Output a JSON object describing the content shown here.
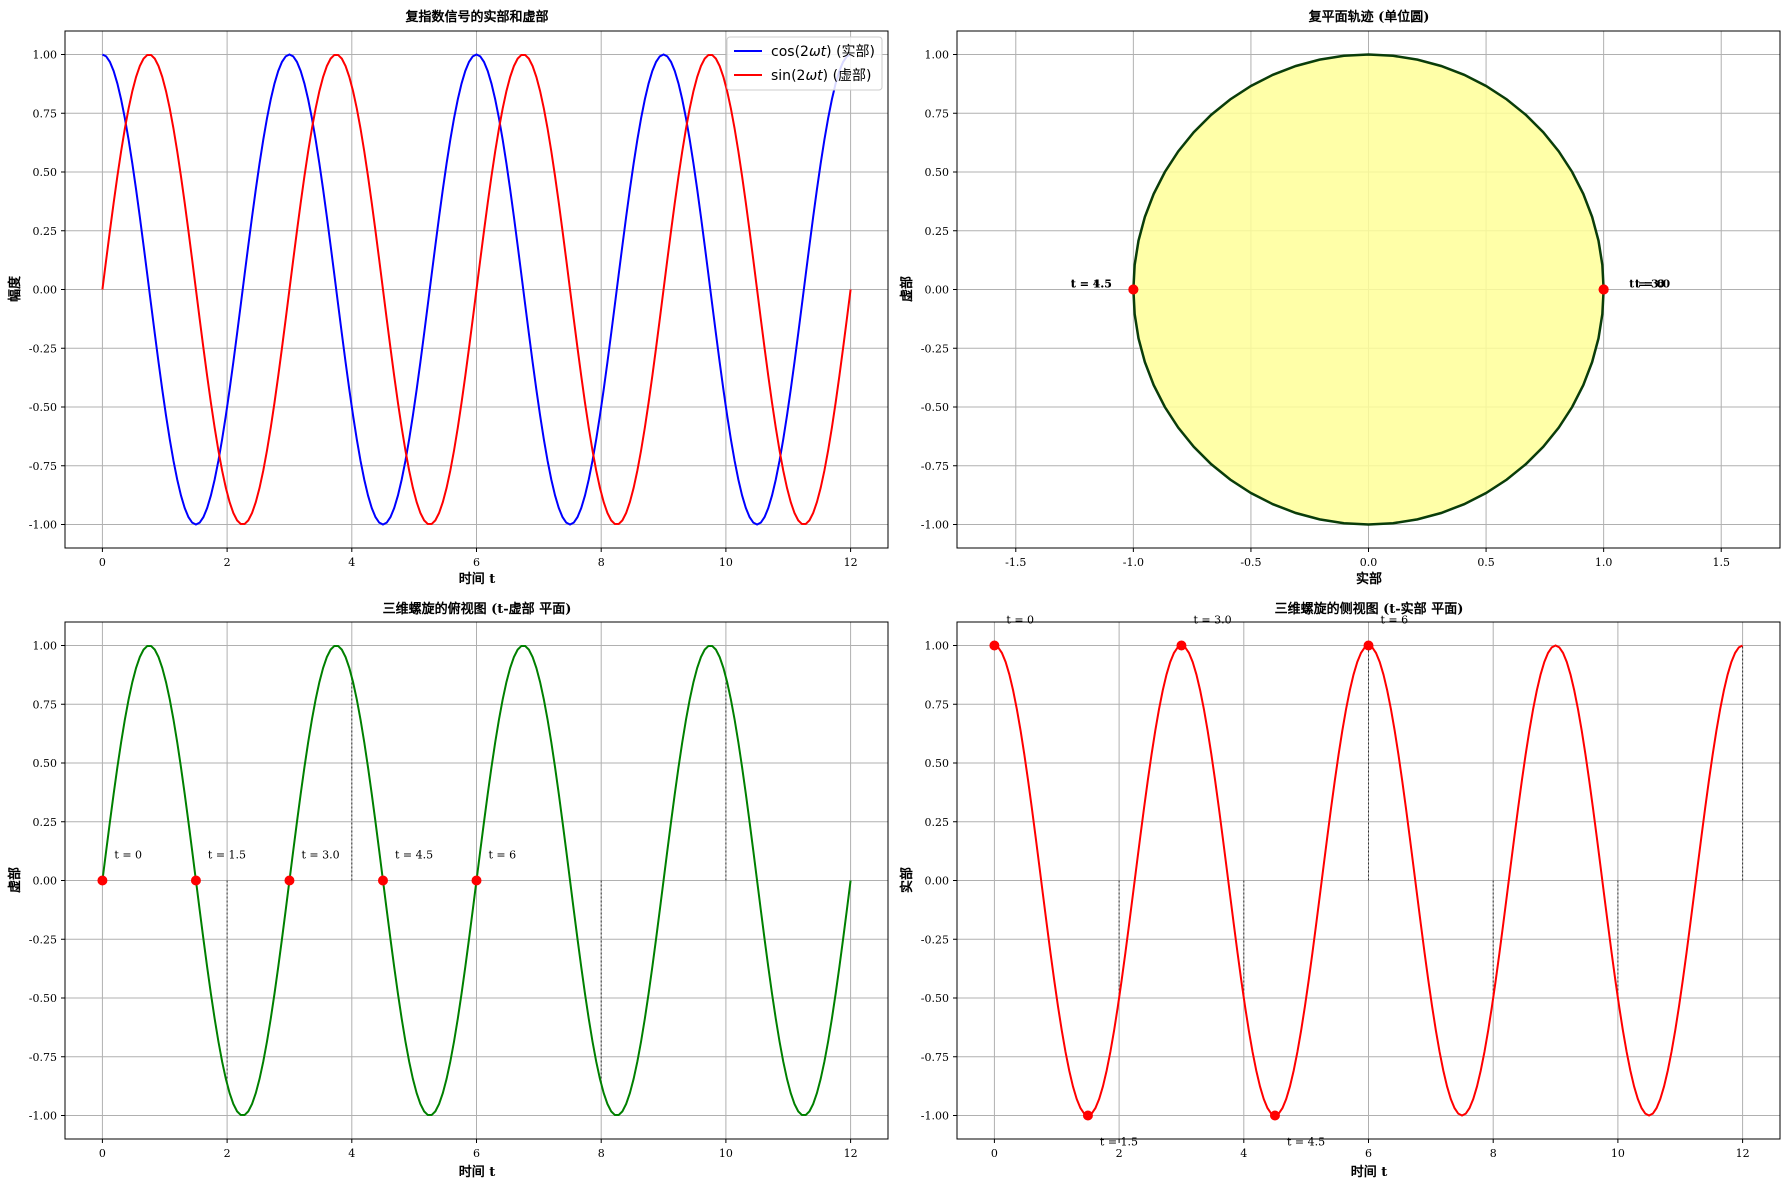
{
  "chart_data": [
    {
      "type": "line",
      "title": "复指数信号的实部和虚部",
      "xlabel": "时间 t",
      "ylabel": "幅度",
      "xlim": [
        -0.6,
        12.6
      ],
      "ylim": [
        -1.1,
        1.1
      ],
      "xticks": [
        "0",
        "2",
        "4",
        "6",
        "8",
        "10",
        "12"
      ],
      "yticks": [
        "1.00",
        "0.75",
        "0.50",
        "0.25",
        "0.00",
        "-0.25",
        "-0.50",
        "-0.75",
        "-1.00"
      ],
      "grid": true,
      "legend": "upper right",
      "series": [
        {
          "name": "cos(2ωt) (实部)",
          "legend_func": "cos",
          "legend_suffix": " (实部)",
          "func": "cos",
          "period": 3,
          "color": "#0000ff"
        },
        {
          "name": "sin(2ωt) (虚部)",
          "legend_func": "sin",
          "legend_suffix": " (虚部)",
          "func": "sin",
          "period": 3,
          "color": "#ff0000"
        }
      ]
    },
    {
      "type": "line",
      "title": "复平面轨迹 (单位圆)",
      "xlabel": "实部",
      "ylabel": "虚部",
      "xlim": [
        -1.75,
        1.75
      ],
      "ylim": [
        -1.1,
        1.1
      ],
      "xticks": [
        "-1.5",
        "-1.0",
        "-0.5",
        "0.0",
        "0.5",
        "1.0",
        "1.5"
      ],
      "yticks": [
        "1.00",
        "0.75",
        "0.50",
        "0.25",
        "0.00",
        "-0.25",
        "-0.50",
        "-0.75",
        "-1.00"
      ],
      "grid": true,
      "series": [
        {
          "shape": "unit circle",
          "line_color": "#0a3d0a",
          "fill_color": "#ffff99"
        }
      ],
      "markers": [
        {
          "label": "t = 0",
          "x": 1.0,
          "y": 0.0
        },
        {
          "label": "t = 3.0",
          "x": 1.0,
          "y": 0.0
        },
        {
          "label": "t = 6",
          "x": 1.0,
          "y": 0.0
        },
        {
          "label": "t = 1.5",
          "x": -1.0,
          "y": 0.0
        },
        {
          "label": "t = 4.5",
          "x": -1.0,
          "y": 0.0
        }
      ],
      "marker_color": "#ff0000"
    },
    {
      "type": "line",
      "title": "三维螺旋的俯视图 (t-虚部 平面)",
      "xlabel": "时间 t",
      "ylabel": "虚部",
      "xlim": [
        -0.6,
        12.6
      ],
      "ylim": [
        -1.1,
        1.1
      ],
      "xticks": [
        "0",
        "2",
        "4",
        "6",
        "8",
        "10",
        "12"
      ],
      "yticks": [
        "1.00",
        "0.75",
        "0.50",
        "0.25",
        "0.00",
        "-0.25",
        "-0.50",
        "-0.75",
        "-1.00"
      ],
      "grid": true,
      "series": [
        {
          "func": "sin",
          "period": 3,
          "color": "#008000"
        }
      ],
      "markers": [
        {
          "label": "t = 0",
          "x": 0,
          "y": 0.0
        },
        {
          "label": "t = 1.5",
          "x": 1.5,
          "y": 0.0
        },
        {
          "label": "t = 3.0",
          "x": 3.0,
          "y": 0.0
        },
        {
          "label": "t = 4.5",
          "x": 4.5,
          "y": 0.0
        },
        {
          "label": "t = 6",
          "x": 6,
          "y": 0.0
        }
      ],
      "marker_color": "#ff0000",
      "stems": [
        2,
        4,
        8,
        10
      ]
    },
    {
      "type": "line",
      "title": "三维螺旋的侧视图 (t-实部 平面)",
      "xlabel": "时间 t",
      "ylabel": "实部",
      "xlim": [
        -0.6,
        12.6
      ],
      "ylim": [
        -1.1,
        1.1
      ],
      "xticks": [
        "0",
        "2",
        "4",
        "6",
        "8",
        "10",
        "12"
      ],
      "yticks": [
        "1.00",
        "0.75",
        "0.50",
        "0.25",
        "0.00",
        "-0.25",
        "-0.50",
        "-0.75",
        "-1.00"
      ],
      "grid": true,
      "series": [
        {
          "func": "cos",
          "period": 3,
          "color": "#ff0000"
        }
      ],
      "markers": [
        {
          "label": "t = 0",
          "x": 0,
          "y": 1.0
        },
        {
          "label": "t = 1.5",
          "x": 1.5,
          "y": -1.0
        },
        {
          "label": "t = 3.0",
          "x": 3.0,
          "y": 1.0
        },
        {
          "label": "t = 4.5",
          "x": 4.5,
          "y": -1.0
        },
        {
          "label": "t = 6",
          "x": 6,
          "y": 1.0
        }
      ],
      "marker_color": "#ff0000",
      "stems": [
        2,
        4,
        6,
        8,
        10,
        12
      ]
    }
  ]
}
